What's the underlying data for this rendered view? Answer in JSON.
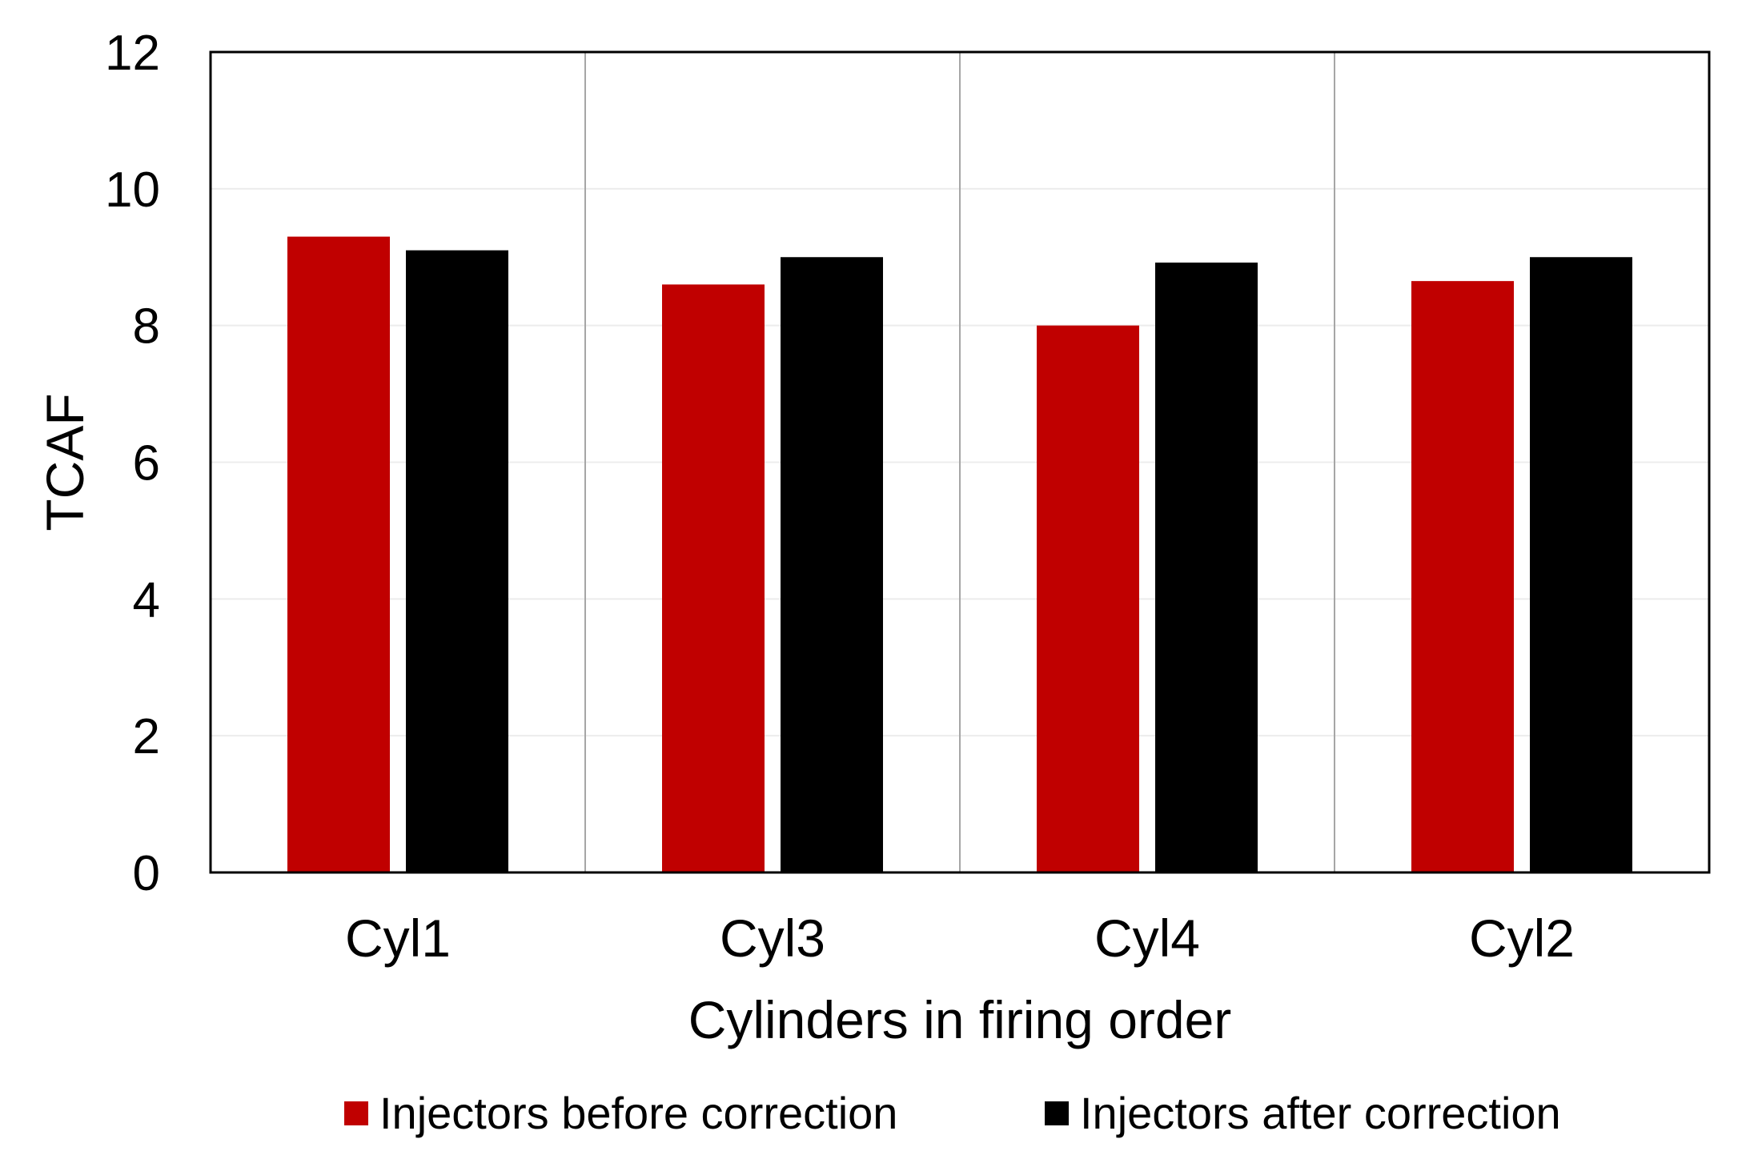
{
  "chart_data": {
    "type": "bar",
    "title": "",
    "xlabel": "Cylinders in firing order",
    "ylabel": "TCAF",
    "categories": [
      "Cyl1",
      "Cyl3",
      "Cyl4",
      "Cyl2"
    ],
    "series": [
      {
        "name": "Injectors before correction",
        "values": [
          9.3,
          8.6,
          8.0,
          8.65
        ],
        "color": "#c00000"
      },
      {
        "name": "Injectors after correction",
        "values": [
          9.1,
          9.0,
          8.92,
          9.0
        ],
        "color": "#000000"
      }
    ],
    "ylim": [
      0,
      12
    ],
    "yticks": [
      0,
      2,
      4,
      6,
      8,
      10,
      12
    ],
    "grid": true,
    "category_separators": true,
    "legend_position": "bottom"
  }
}
